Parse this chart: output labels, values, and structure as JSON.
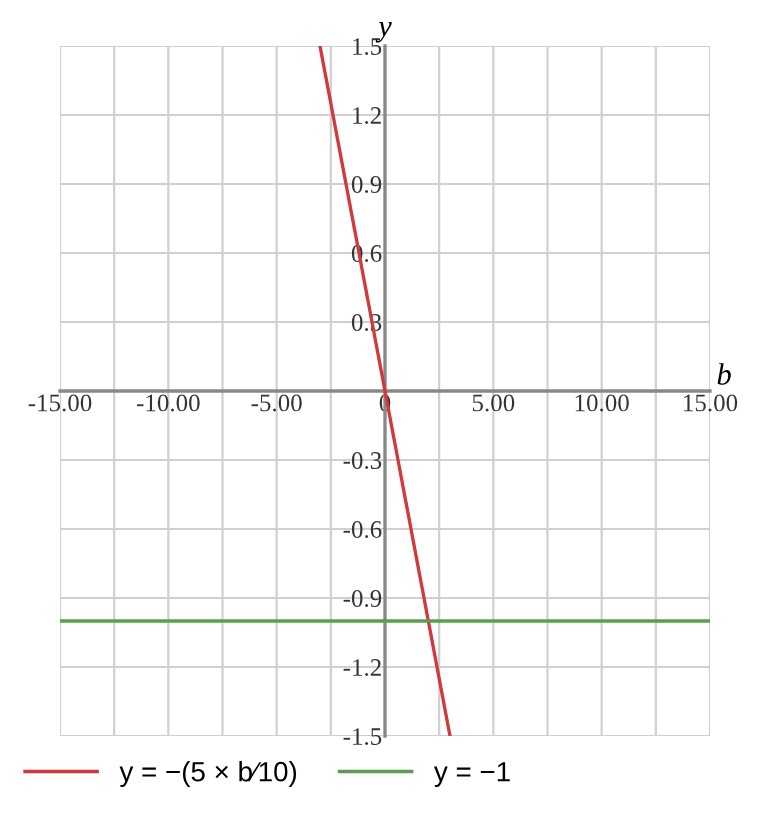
{
  "chart_data": {
    "type": "line",
    "xlabel": "b",
    "ylabel": "y",
    "xlim": [
      -15,
      15
    ],
    "ylim": [
      -1.5,
      1.5
    ],
    "xticks": [
      {
        "value": -15,
        "label": "-15.00"
      },
      {
        "value": -12.5,
        "label": null
      },
      {
        "value": -10,
        "label": "-10.00"
      },
      {
        "value": -7.5,
        "label": null
      },
      {
        "value": -5,
        "label": "-5.00"
      },
      {
        "value": -2.5,
        "label": null
      },
      0,
      {
        "value": 2.5,
        "label": null
      },
      {
        "value": 5,
        "label": "5.00"
      },
      {
        "value": 7.5,
        "label": null
      },
      {
        "value": 10,
        "label": "10.00"
      },
      {
        "value": 12.5,
        "label": null
      },
      {
        "value": 15,
        "label": "15.00"
      }
    ],
    "yticks": [
      -1.5,
      -1.2,
      -0.9,
      -0.6,
      -0.3,
      {
        "value": 0,
        "label": null
      },
      0.3,
      0.6,
      0.9,
      1.2,
      1.5
    ],
    "grid": true,
    "legend": "bottom",
    "marker": "none",
    "line_style": "solid",
    "series": [
      {
        "name": "y = −(5 × b⁄10)",
        "color": "#d03a3a",
        "x": [
          -3,
          3
        ],
        "values": [
          1.5,
          -1.5
        ]
      },
      {
        "name": "y = −1",
        "color": "#5a9e4f",
        "x": [
          -15,
          15
        ],
        "values": [
          -1,
          -1
        ]
      }
    ]
  }
}
